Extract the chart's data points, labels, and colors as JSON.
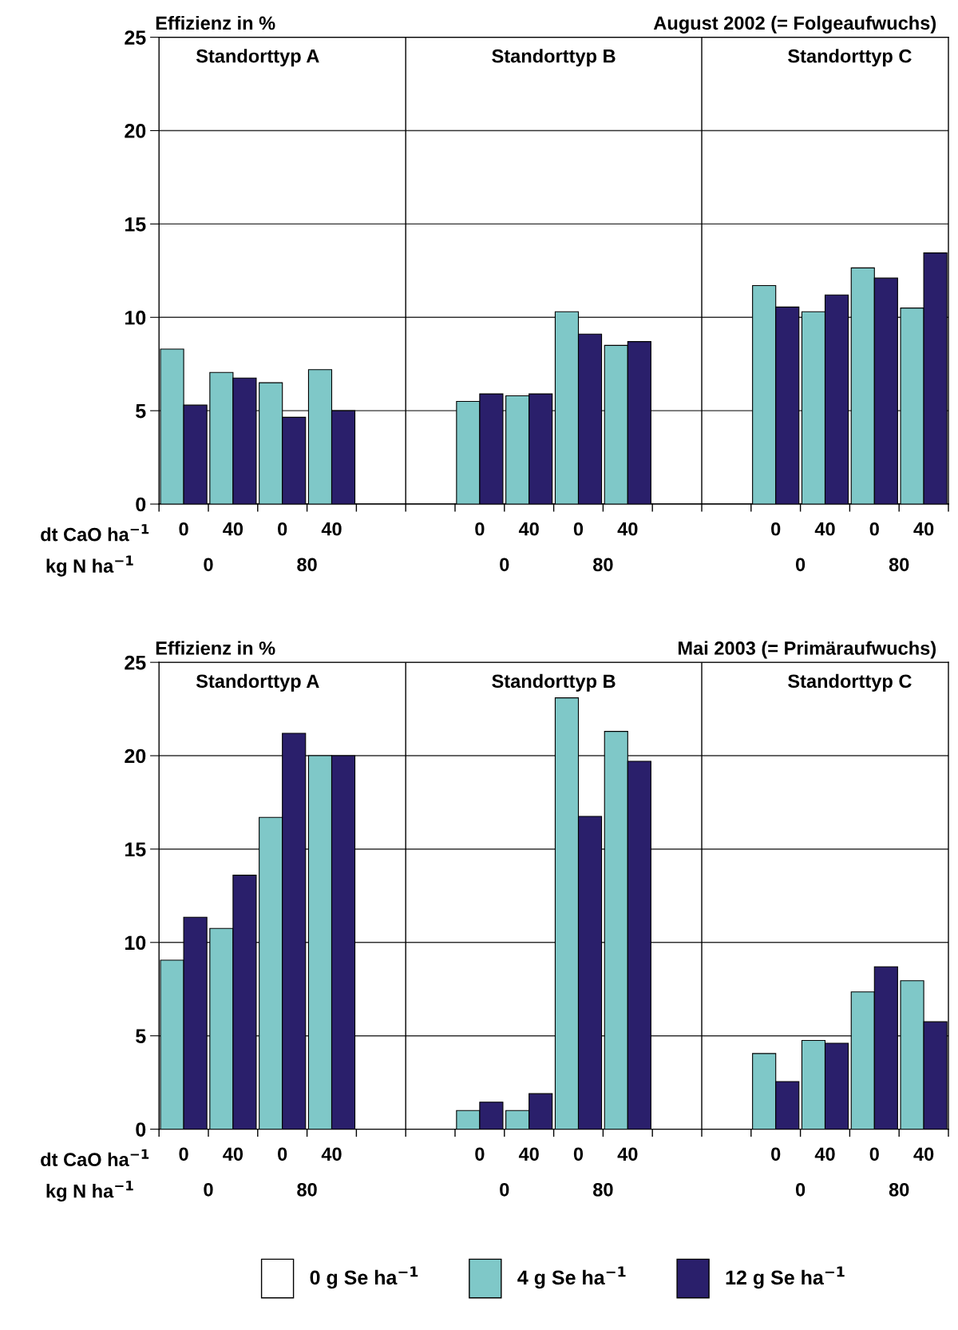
{
  "chart_data": [
    {
      "type": "bar",
      "title": "August 2002 (= Folgeaufwuchs)",
      "ylabel": "Effizienz in %",
      "categories": [
        "0",
        "40",
        "0",
        "40",
        null,
        null,
        "0",
        "40",
        "0",
        "40",
        null,
        null,
        "0",
        "40",
        "0",
        "40"
      ],
      "series": [
        {
          "color": "#ffffff",
          "values": [
            null,
            null,
            null,
            null,
            null,
            null,
            null,
            null,
            null,
            null,
            null,
            null,
            null,
            null,
            null,
            null
          ]
        },
        {
          "color": "#7fc8c8",
          "values": [
            8.3,
            7.05,
            6.5,
            7.2,
            null,
            null,
            5.5,
            5.8,
            10.3,
            8.5,
            null,
            null,
            11.7,
            10.3,
            12.65,
            10.5
          ]
        },
        {
          "color": "#2a1f6b",
          "values": [
            5.3,
            6.75,
            4.65,
            5.0,
            null,
            null,
            5.9,
            5.9,
            9.1,
            8.7,
            null,
            null,
            10.55,
            11.2,
            12.1,
            13.45
          ]
        }
      ],
      "annotations": [
        "Standorttyp A",
        "Standorttyp B",
        "Standorttyp C",
        "dt CaO ha$^{−1}$",
        "kg N ha$^{−1}$",
        "0",
        "80",
        "0",
        "80",
        "0",
        "80"
      ],
      "ylim": [
        0,
        25
      ],
      "yticks": [
        0,
        5,
        10,
        15,
        20,
        25
      ],
      "grid": "y",
      "legend": false
    },
    {
      "type": "bar",
      "title": "Mai 2003 (= Primäraufwuchs)",
      "ylabel": "Effizienz in %",
      "categories": [
        "0",
        "40",
        "0",
        "40",
        null,
        null,
        "0",
        "40",
        "0",
        "40",
        null,
        null,
        "0",
        "40",
        "0",
        "40"
      ],
      "series": [
        {
          "name": "0 g Se ha$^{−1}$",
          "color": "#ffffff",
          "values": [
            null,
            null,
            null,
            null,
            null,
            null,
            null,
            null,
            null,
            null,
            null,
            null,
            null,
            null,
            null,
            null
          ]
        },
        {
          "name": "4 g Se ha$^{−1}$",
          "color": "#7fc8c8",
          "values": [
            9.05,
            10.75,
            16.7,
            20.0,
            null,
            null,
            1.0,
            1.0,
            23.1,
            21.3,
            null,
            null,
            4.05,
            4.75,
            7.35,
            7.95
          ]
        },
        {
          "name": "12 g Se ha$^{−1}$",
          "color": "#2a1f6b",
          "values": [
            11.35,
            13.6,
            21.2,
            20.0,
            null,
            null,
            1.45,
            1.9,
            16.75,
            19.7,
            null,
            null,
            2.55,
            4.6,
            8.7,
            5.75
          ]
        }
      ],
      "annotations": [
        "Standorttyp A",
        "Standorttyp B",
        "Standorttyp C",
        "dt CaO ha$^{−1}$",
        "kg N ha$^{−1}$",
        "0",
        "80",
        "0",
        "80",
        "0",
        "80"
      ],
      "ylim": [
        0,
        25
      ],
      "yticks": [
        0,
        5,
        10,
        15,
        20,
        25
      ],
      "grid": "y",
      "legend": "bottom"
    }
  ]
}
